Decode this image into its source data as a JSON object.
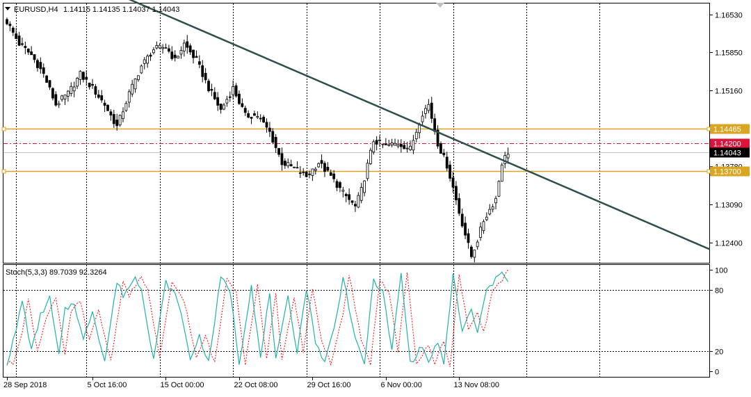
{
  "window": {
    "symbol_label": "EURUSD,H4",
    "ohlc_label": "1.14115 1.14135 1.14037 1.14043",
    "indicator_label": "Stoch(5,3,3) 89.7039 92.3264"
  },
  "colors": {
    "background": "#ffffff",
    "axis": "#000000",
    "grid": "#000000",
    "candle": "#000000",
    "trendline": "#2f4f4f",
    "level_line": "#daa520",
    "bid_line": "#dc143c",
    "ask_line": "#c0c0c0",
    "stoch_main": "#20b2aa",
    "stoch_signal": "#ff0000"
  },
  "chart_data": [
    {
      "type": "candlestick",
      "symbol": "EURUSD",
      "timeframe": "H4",
      "ylim": [
        1.1195,
        1.1685
      ],
      "y_ticks": [
        "1.16530",
        "1.15850",
        "1.15160",
        "1.13780",
        "1.13090",
        "1.12400"
      ],
      "x_ticks": [
        "28 Sep 2018",
        "5 Oct 16:00",
        "15 Oct 00:00",
        "22 Oct 08:00",
        "29 Oct 16:00",
        "6 Nov 00:00",
        "13 Nov 08:00"
      ],
      "x_tick_bar_index": [
        0,
        28,
        52,
        76,
        100,
        124,
        148
      ],
      "bar_count": 165,
      "grid": "vertical-dotted",
      "close_anchors": [
        [
          0,
          1.164
        ],
        [
          4,
          1.16
        ],
        [
          8,
          1.158
        ],
        [
          12,
          1.1545
        ],
        [
          16,
          1.149
        ],
        [
          20,
          1.151
        ],
        [
          24,
          1.1545
        ],
        [
          28,
          1.152
        ],
        [
          32,
          1.149
        ],
        [
          36,
          1.145
        ],
        [
          40,
          1.151
        ],
        [
          44,
          1.156
        ],
        [
          48,
          1.159
        ],
        [
          52,
          1.1595
        ],
        [
          55,
          1.157
        ],
        [
          58,
          1.16
        ],
        [
          62,
          1.157
        ],
        [
          66,
          1.152
        ],
        [
          70,
          1.148
        ],
        [
          74,
          1.152
        ],
        [
          78,
          1.147
        ],
        [
          82,
          1.147
        ],
        [
          86,
          1.144
        ],
        [
          90,
          1.1385
        ],
        [
          94,
          1.1375
        ],
        [
          98,
          1.136
        ],
        [
          102,
          1.1385
        ],
        [
          106,
          1.136
        ],
        [
          110,
          1.133
        ],
        [
          114,
          1.1305
        ],
        [
          116,
          1.1335
        ],
        [
          120,
          1.1425
        ],
        [
          124,
          1.1415
        ],
        [
          128,
          1.142
        ],
        [
          132,
          1.141
        ],
        [
          136,
          1.1475
        ],
        [
          138,
          1.149
        ],
        [
          141,
          1.142
        ],
        [
          144,
          1.138
        ],
        [
          146,
          1.134
        ],
        [
          148,
          1.1295
        ],
        [
          150,
          1.1255
        ],
        [
          152,
          1.1215
        ],
        [
          154,
          1.1245
        ],
        [
          156,
          1.128
        ],
        [
          158,
          1.13
        ],
        [
          160,
          1.132
        ],
        [
          162,
          1.1385
        ],
        [
          164,
          1.1404
        ]
      ],
      "levels": [
        {
          "label": "1.14465",
          "value": 1.14465,
          "style": "solid"
        },
        {
          "label": "1.13700",
          "value": 1.137,
          "style": "solid"
        }
      ],
      "price_tags": [
        {
          "label": "1.14200",
          "value": 1.142,
          "kind": "bid"
        },
        {
          "label": "1.14043",
          "value": 1.14043,
          "kind": "current"
        }
      ],
      "trendline": {
        "start": [
          34,
          1.1695
        ],
        "end": [
          230,
          1.1228
        ]
      }
    },
    {
      "type": "line",
      "name": "Stoch(5,3,3)",
      "ylim": [
        0,
        100
      ],
      "y_ticks": [
        "100",
        "80",
        "20",
        "0"
      ],
      "levels": [
        80,
        20
      ],
      "series": [
        {
          "name": "%K",
          "kind": "main",
          "anchors": [
            [
              0,
              8
            ],
            [
              3,
              40
            ],
            [
              5,
              70
            ],
            [
              8,
              20
            ],
            [
              11,
              55
            ],
            [
              14,
              72
            ],
            [
              17,
              15
            ],
            [
              19,
              60
            ],
            [
              22,
              68
            ],
            [
              25,
              30
            ],
            [
              28,
              60
            ],
            [
              32,
              10
            ],
            [
              36,
              88
            ],
            [
              38,
              75
            ],
            [
              42,
              92
            ],
            [
              44,
              82
            ],
            [
              48,
              12
            ],
            [
              52,
              88
            ],
            [
              56,
              70
            ],
            [
              60,
              12
            ],
            [
              63,
              35
            ],
            [
              66,
              8
            ],
            [
              70,
              92
            ],
            [
              73,
              80
            ],
            [
              76,
              8
            ],
            [
              80,
              85
            ],
            [
              83,
              12
            ],
            [
              86,
              78
            ],
            [
              88,
              10
            ],
            [
              92,
              72
            ],
            [
              95,
              20
            ],
            [
              98,
              82
            ],
            [
              101,
              30
            ],
            [
              104,
              8
            ],
            [
              108,
              55
            ],
            [
              110,
              95
            ],
            [
              114,
              30
            ],
            [
              117,
              8
            ],
            [
              120,
              90
            ],
            [
              123,
              78
            ],
            [
              126,
              20
            ],
            [
              129,
              96
            ],
            [
              132,
              8
            ],
            [
              136,
              25
            ],
            [
              138,
              8
            ],
            [
              141,
              30
            ],
            [
              143,
              5
            ],
            [
              146,
              95
            ],
            [
              149,
              40
            ],
            [
              152,
              60
            ],
            [
              154,
              38
            ],
            [
              157,
              80
            ],
            [
              160,
              90
            ],
            [
              162,
              100
            ],
            [
              164,
              90
            ]
          ]
        },
        {
          "name": "%D",
          "kind": "signal",
          "lag": 2
        }
      ]
    }
  ]
}
